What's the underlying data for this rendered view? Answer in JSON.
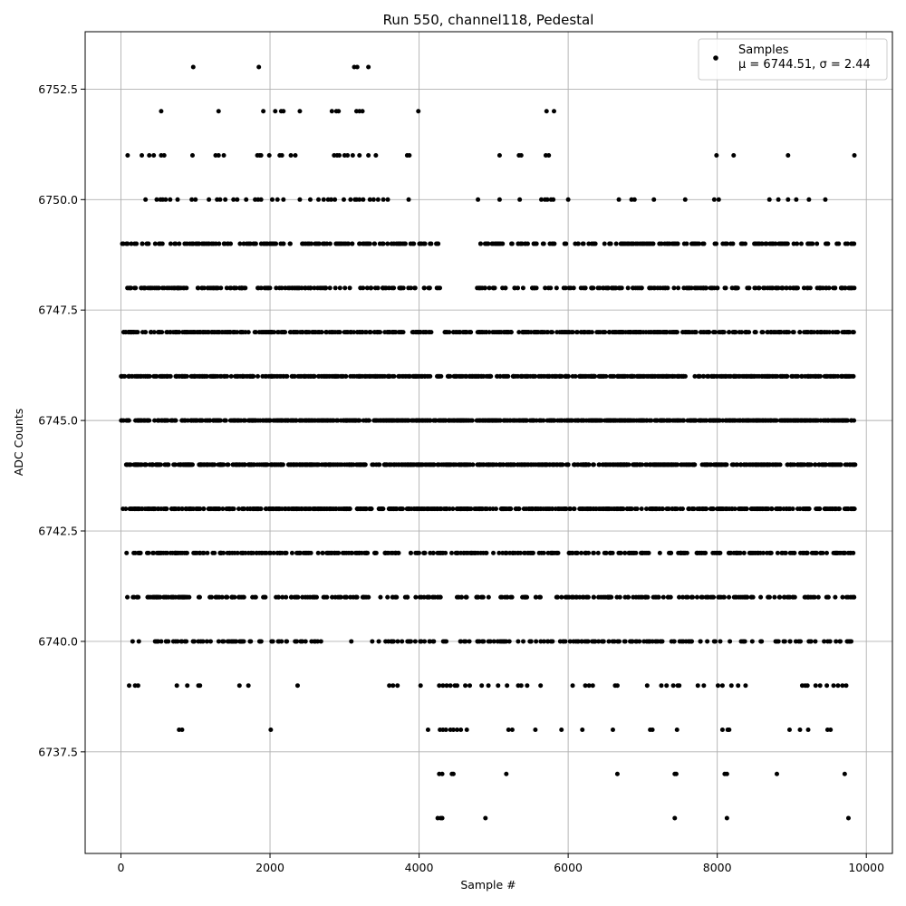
{
  "chart_data": {
    "type": "scatter",
    "title": "Run 550, channel118, Pedestal",
    "xlabel": "Sample #",
    "ylabel": "ADC Counts",
    "xlim": [
      -480,
      10350
    ],
    "ylim": [
      6735.2,
      6753.8
    ],
    "xticks": [
      0,
      2000,
      4000,
      6000,
      8000,
      10000
    ],
    "xtick_labels": [
      "0",
      "2000",
      "4000",
      "6000",
      "8000",
      "10000"
    ],
    "yticks": [
      6737.5,
      6740.0,
      6742.5,
      6745.0,
      6747.5,
      6750.0,
      6752.5
    ],
    "ytick_labels": [
      "6737.5",
      "6740.0",
      "6742.5",
      "6745.0",
      "6747.5",
      "6750.0",
      "6752.5"
    ],
    "grid": true,
    "legend_position": "top-right",
    "series": [
      {
        "name": "Samples",
        "legend_stats": "μ = 6744.51, σ = 2.44",
        "color": "#000000",
        "marker": "dot",
        "x_range": [
          0,
          9850
        ],
        "levels": [
          {
            "y": 6736,
            "x": [
              4250,
              4290,
              4310,
              4890,
              7430,
              8130,
              9760
            ]
          },
          {
            "y": 6737,
            "x": [
              4270,
              4310,
              4440,
              4460,
              5170,
              6660,
              7430,
              7450,
              8100,
              8130,
              8800,
              9710
            ]
          },
          {
            "y": 6738,
            "x": [
              780,
              820,
              2010,
              4120,
              4280,
              4320,
              4360,
              4420,
              4460,
              4510,
              4560,
              4640,
              5200,
              5250,
              5560,
              5910,
              6190,
              6600,
              7100,
              7130,
              7460,
              8070,
              8140,
              8160,
              8970,
              9110,
              9220,
              9480,
              9520
            ]
          },
          {
            "y": 6739,
            "x": [
              110,
              190,
              230,
              750,
              890,
              1040,
              1060,
              1590,
              1710,
              2370,
              3600,
              3650,
              3710,
              4020,
              4270,
              4320,
              4370,
              4420,
              4480,
              4510,
              4620,
              4680,
              4840,
              4930,
              5060,
              5180,
              5330,
              5370,
              5450,
              5630,
              6060,
              6230,
              6280,
              6330,
              6630,
              6660,
              7060,
              7250,
              7320,
              7410,
              7470,
              7490,
              7740,
              7820,
              8010,
              8070,
              8190,
              8280,
              8380,
              9140,
              9180,
              9210,
              9320,
              9380,
              9470,
              9560,
              9620,
              9680,
              9730
            ]
          },
          {
            "y": 6740,
            "x_min": 150,
            "x_max": 9830,
            "count": 230,
            "seed": 11,
            "gaps": [
              [
                260,
                450
              ],
              [
                2700,
                2900
              ],
              [
                3100,
                3350
              ]
            ]
          },
          {
            "y": 6741,
            "x_min": 80,
            "x_max": 9850,
            "count": 310,
            "seed": 23,
            "gaps": [
              [
                3350,
                3450
              ]
            ]
          },
          {
            "y": 6742,
            "x_min": 60,
            "x_max": 9850,
            "count": 400,
            "seed": 37
          },
          {
            "y": 6743,
            "x_min": 0,
            "x_max": 9850,
            "count": 620,
            "seed": 41
          },
          {
            "y": 6744,
            "x_min": 0,
            "x_max": 9850,
            "count": 700,
            "seed": 53
          },
          {
            "y": 6745,
            "x_min": 0,
            "x_max": 9850,
            "count": 820,
            "seed": 61
          },
          {
            "y": 6746,
            "x_min": 0,
            "x_max": 9850,
            "count": 680,
            "seed": 71,
            "gaps": [
              [
                4150,
                4230
              ],
              [
                4300,
                4380
              ]
            ]
          },
          {
            "y": 6747,
            "x_min": 0,
            "x_max": 9850,
            "count": 560,
            "seed": 83,
            "gaps": [
              [
                4180,
                4330
              ]
            ]
          },
          {
            "y": 6748,
            "x_min": 0,
            "x_max": 9850,
            "count": 330,
            "seed": 97,
            "gaps": [
              [
                4280,
                4760
              ]
            ]
          },
          {
            "y": 6749,
            "x_min": 0,
            "x_max": 9850,
            "count": 320,
            "seed": 101,
            "gaps": [
              [
                4280,
                4760
              ]
            ]
          },
          {
            "y": 6750,
            "x": [
              330,
              480,
              530,
              560,
              600,
              660,
              760,
              950,
              1000,
              1180,
              1290,
              1330,
              1400,
              1510,
              1560,
              1680,
              1800,
              1840,
              1880,
              2030,
              2100,
              2180,
              2400,
              2540,
              2650,
              2720,
              2780,
              2820,
              2870,
              2990,
              3080,
              3140,
              3160,
              3200,
              3250,
              3340,
              3390,
              3450,
              3520,
              3580,
              3860,
              4790,
              5080,
              5350,
              5640,
              5690,
              5720,
              5770,
              5800,
              6000,
              6680,
              6850,
              6890,
              7150,
              7570,
              7960,
              8020,
              8700,
              8820,
              8950,
              9060,
              9230,
              9450
            ]
          },
          {
            "y": 6751,
            "x": [
              90,
              280,
              380,
              440,
              540,
              580,
              960,
              1270,
              1310,
              1380,
              1830,
              1860,
              1880,
              1990,
              2130,
              2160,
              2280,
              2340,
              2860,
              2900,
              2930,
              3000,
              3040,
              3110,
              3200,
              3320,
              3420,
              3840,
              3870,
              5080,
              5340,
              5370,
              5700,
              5740,
              7990,
              8220,
              8950,
              9840
            ]
          },
          {
            "y": 6752,
            "x": [
              540,
              1310,
              1910,
              2070,
              2150,
              2180,
              2400,
              2830,
              2890,
              2920,
              3160,
              3200,
              3240,
              3990,
              5710,
              5810
            ]
          },
          {
            "y": 6753,
            "x": [
              970,
              1850,
              3130,
              3170,
              3320
            ]
          }
        ]
      }
    ]
  }
}
